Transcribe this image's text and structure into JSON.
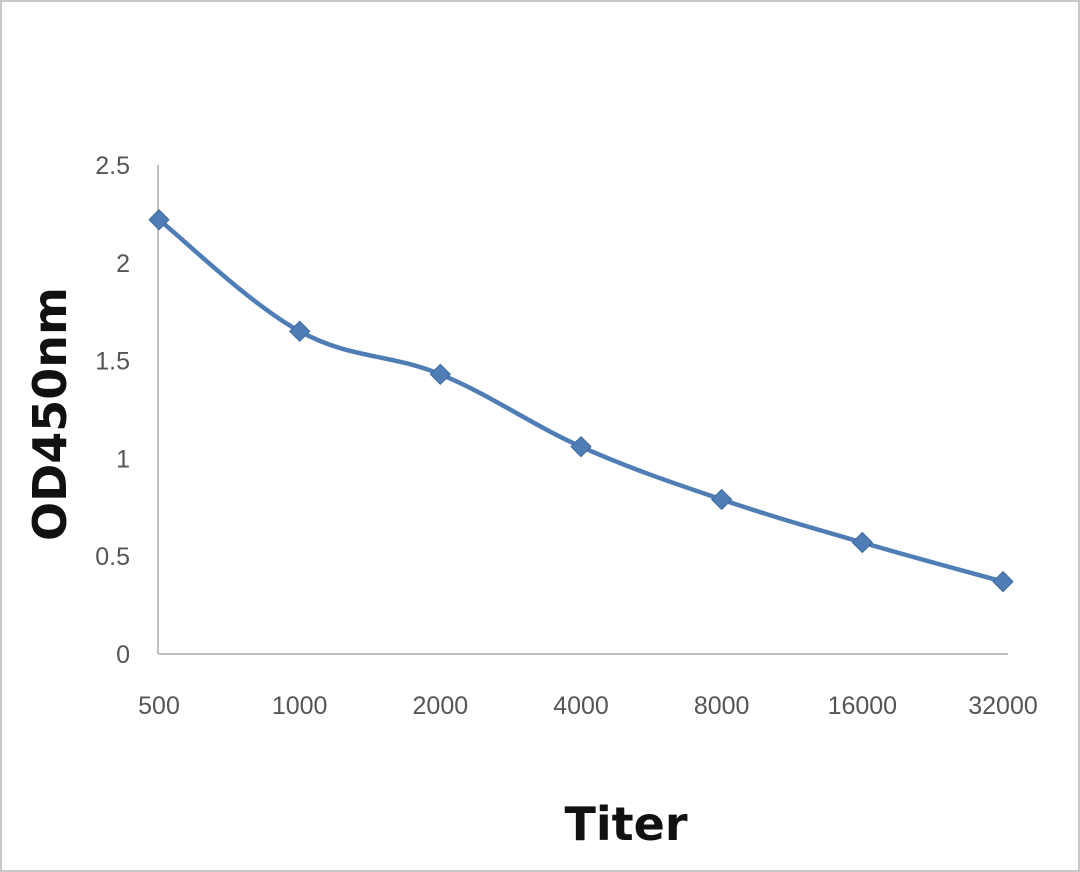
{
  "chart_data": {
    "type": "line",
    "categories": [
      "500",
      "1000",
      "2000",
      "4000",
      "8000",
      "16000",
      "32000"
    ],
    "series": [
      {
        "values": [
          2.22,
          1.65,
          1.43,
          1.06,
          0.79,
          0.57,
          0.37
        ]
      }
    ],
    "xlabel": "Titer",
    "ylabel": "OD450nm",
    "ylim": [
      0,
      2.5
    ],
    "yticks": [
      "0",
      "0.5",
      "1",
      "1.5",
      "2",
      "2.5"
    ],
    "grid": false,
    "legend": "none",
    "line_color": "#4f7db5",
    "marker": "diamond"
  }
}
